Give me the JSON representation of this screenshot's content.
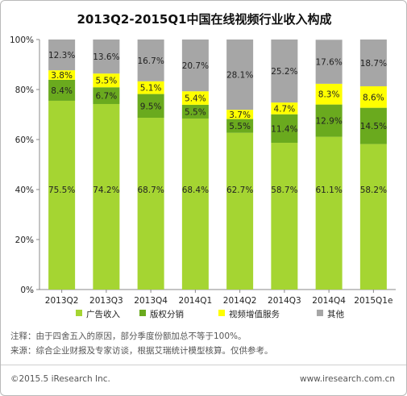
{
  "title": "2013Q2-2015Q1中国在线视频行业收入构成",
  "notes": [
    "注释：由于四舍五入的原因，部分季度份额加总不等于100%。",
    "来源：综合企业财报及专家访谈，根据艾瑞统计模型核算。仅供参考。"
  ],
  "footer": {
    "copyright": "©2015.5 iResearch Inc.",
    "website": "www.iresearch.com.cn"
  },
  "colors": {
    "广告收入": "#a5d532",
    "版权分销": "#6aaa1e",
    "视频增值服务": "#ffff00",
    "其他": "#a6a6a6"
  },
  "chart_data": {
    "type": "bar",
    "stacked": true,
    "categories": [
      "2013Q2",
      "2013Q3",
      "2013Q4",
      "2014Q1",
      "2014Q2",
      "2014Q3",
      "2014Q4",
      "2015Q1e"
    ],
    "series": [
      {
        "name": "广告收入",
        "values": [
          75.5,
          74.2,
          68.7,
          68.4,
          62.7,
          58.7,
          61.1,
          58.2
        ],
        "labels": [
          "75.5%",
          "74.2%",
          "68.7%",
          "68.4%",
          "62.7%",
          "58.7%",
          "61.1%",
          "58.2%"
        ]
      },
      {
        "name": "版权分销",
        "values": [
          8.4,
          6.7,
          9.5,
          5.5,
          5.5,
          11.4,
          12.9,
          14.5
        ],
        "labels": [
          "8.4%",
          "6.7%",
          "9.5%",
          "5.5%",
          "5.5%",
          "11.4%",
          "12.9%",
          "14.5%"
        ]
      },
      {
        "name": "视频增值服务",
        "values": [
          3.8,
          5.5,
          5.1,
          5.4,
          3.7,
          4.7,
          8.3,
          8.6
        ],
        "labels": [
          "3.8%",
          "5.5%",
          "5.1%",
          "5.4%",
          "3.7%",
          "4.7%",
          "8.3%",
          "8.6%"
        ]
      },
      {
        "name": "其他",
        "values": [
          12.3,
          13.6,
          16.7,
          20.7,
          28.1,
          25.2,
          17.6,
          18.7
        ],
        "labels": [
          "12.3%",
          "13.6%",
          "16.7%",
          "20.7%",
          "28.1%",
          "25.2%",
          "17.6%",
          "18.7%"
        ]
      }
    ],
    "ylim": [
      0,
      100
    ],
    "yticks": [
      "0%",
      "20%",
      "40%",
      "60%",
      "80%",
      "100%"
    ],
    "legend_position": "bottom",
    "grid": false
  }
}
